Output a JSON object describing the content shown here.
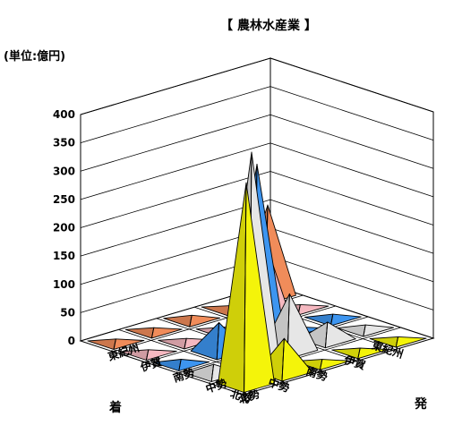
{
  "chart_data": {
    "type": "3d-pyramid-bar",
    "title": "【 農林水産業 】",
    "unit_label": "(単位:億円)",
    "y_ticks": [
      "0",
      "50",
      "100",
      "150",
      "200",
      "250",
      "300",
      "350",
      "400"
    ],
    "ylim": [
      0,
      400
    ],
    "dest_axis_title": "着",
    "origin_axis_title": "発",
    "dest_categories": [
      "東紀州",
      "伊賀",
      "南勢",
      "中勢",
      "北勢"
    ],
    "origin_categories": [
      "東紀州",
      "伊賀",
      "南勢",
      "中勢",
      "北勢"
    ],
    "series_colors": {
      "東紀州": "#f08c5a",
      "伊賀": "#f5b8c0",
      "南勢": "#3d95f0",
      "中勢": "#e6e6e6",
      "北勢": "#f4f40a"
    },
    "values": [
      {
        "origin": "東紀州",
        "dest": "東紀州",
        "value": 160
      },
      {
        "origin": "東紀州",
        "dest": "伊賀",
        "value": 2
      },
      {
        "origin": "東紀州",
        "dest": "南勢",
        "value": 5
      },
      {
        "origin": "東紀州",
        "dest": "中勢",
        "value": 3
      },
      {
        "origin": "東紀州",
        "dest": "北勢",
        "value": 3
      },
      {
        "origin": "伊賀",
        "dest": "東紀州",
        "value": 3
      },
      {
        "origin": "伊賀",
        "dest": "伊賀",
        "value": 150
      },
      {
        "origin": "伊賀",
        "dest": "南勢",
        "value": 3
      },
      {
        "origin": "伊賀",
        "dest": "中勢",
        "value": 3
      },
      {
        "origin": "伊賀",
        "dest": "北勢",
        "value": 3
      },
      {
        "origin": "南勢",
        "dest": "東紀州",
        "value": 5
      },
      {
        "origin": "南勢",
        "dest": "伊賀",
        "value": 3
      },
      {
        "origin": "南勢",
        "dest": "南勢",
        "value": 310
      },
      {
        "origin": "南勢",
        "dest": "中勢",
        "value": 50
      },
      {
        "origin": "南勢",
        "dest": "北勢",
        "value": 5
      },
      {
        "origin": "中勢",
        "dest": "東紀州",
        "value": 5
      },
      {
        "origin": "中勢",
        "dest": "伊賀",
        "value": 30
      },
      {
        "origin": "中勢",
        "dest": "南勢",
        "value": 100
      },
      {
        "origin": "中勢",
        "dest": "中勢",
        "value": 370
      },
      {
        "origin": "中勢",
        "dest": "北勢",
        "value": 15
      },
      {
        "origin": "北勢",
        "dest": "東紀州",
        "value": 3
      },
      {
        "origin": "北勢",
        "dest": "伊賀",
        "value": 3
      },
      {
        "origin": "北勢",
        "dest": "南勢",
        "value": 3
      },
      {
        "origin": "北勢",
        "dest": "中勢",
        "value": 60
      },
      {
        "origin": "北勢",
        "dest": "北勢",
        "value": 355
      }
    ]
  }
}
